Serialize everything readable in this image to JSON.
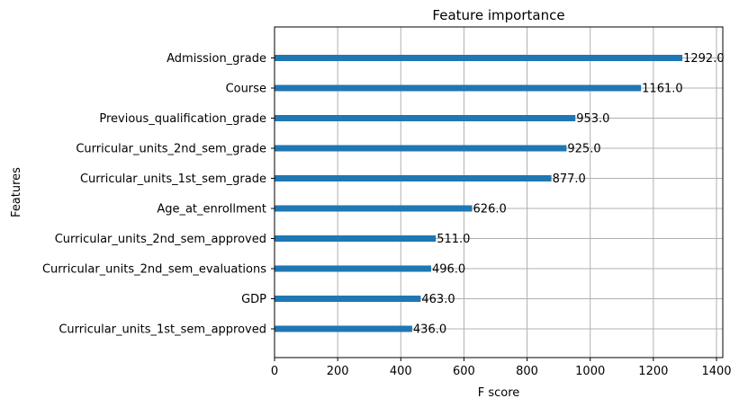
{
  "chart_data": {
    "type": "bar",
    "orientation": "horizontal",
    "title": "Feature importance",
    "xlabel": "F score",
    "ylabel": "Features",
    "xlim": [
      0,
      1420
    ],
    "xticks": [
      0,
      200,
      400,
      600,
      800,
      1000,
      1200,
      1400
    ],
    "grid": true,
    "bar_color": "#1f77b4",
    "categories": [
      "Curricular_units_1st_sem_approved",
      "GDP",
      "Curricular_units_2nd_sem_evaluations",
      "Curricular_units_2nd_sem_approved",
      "Age_at_enrollment",
      "Curricular_units_1st_sem_grade",
      "Curricular_units_2nd_sem_grade",
      "Previous_qualification_grade",
      "Course",
      "Admission_grade"
    ],
    "values": [
      436.0,
      463.0,
      496.0,
      511.0,
      626.0,
      877.0,
      925.0,
      953.0,
      1161.0,
      1292.0
    ],
    "value_labels": [
      "436.0",
      "463.0",
      "496.0",
      "511.0",
      "626.0",
      "877.0",
      "925.0",
      "953.0",
      "1161.0",
      "1292.0"
    ]
  }
}
